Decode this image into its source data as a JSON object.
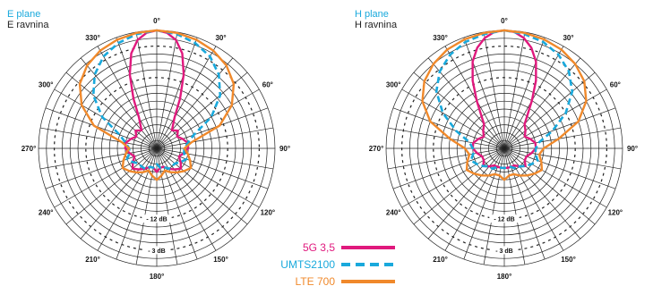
{
  "chart_data": [
    {
      "type": "polar",
      "title_en": "E plane",
      "title_local": "E ravnina",
      "angle_labels": [
        "0°",
        "30°",
        "60°",
        "90°",
        "120°",
        "150°",
        "180°",
        "210°",
        "240°",
        "270°",
        "300°",
        "330°"
      ],
      "db_labels": [
        "- 12 dB",
        "- 3 dB"
      ],
      "rlim_db": [
        -30,
        0
      ],
      "grid": true,
      "series": [
        {
          "name": "5G 3,5",
          "color": "#e0197d",
          "style": "solid",
          "theta_deg": [
            0,
            5,
            10,
            15,
            20,
            25,
            30,
            40,
            50,
            60,
            70,
            80,
            90,
            100,
            110,
            120,
            130,
            140,
            150,
            160,
            170,
            180,
            190,
            200,
            210,
            220,
            230,
            240,
            250,
            260,
            270,
            280,
            290,
            300,
            310,
            320,
            330,
            335,
            340,
            345,
            350,
            355
          ],
          "r_db": [
            0,
            -0.5,
            -2,
            -5,
            -10,
            -16,
            -21,
            -24,
            -23,
            -24,
            -23,
            -22,
            -22,
            -23,
            -24,
            -23,
            -22,
            -23,
            -24,
            -25,
            -25,
            -24,
            -25,
            -25,
            -24,
            -23,
            -22,
            -23,
            -24,
            -23,
            -22,
            -22,
            -23,
            -24,
            -23,
            -24,
            -21,
            -16,
            -10,
            -5,
            -2,
            -0.5
          ]
        },
        {
          "name": "UMTS2100",
          "color": "#19a9dc",
          "style": "dashed",
          "theta_deg": [
            0,
            10,
            20,
            30,
            40,
            50,
            60,
            70,
            80,
            90,
            100,
            110,
            120,
            130,
            140,
            150,
            160,
            170,
            180,
            190,
            200,
            210,
            220,
            230,
            240,
            250,
            260,
            270,
            280,
            290,
            300,
            310,
            320,
            330,
            340,
            350
          ],
          "r_db": [
            0,
            -0.5,
            -1.5,
            -3,
            -5.5,
            -9,
            -14,
            -20,
            -22,
            -23,
            -23,
            -22,
            -23,
            -24,
            -24,
            -24,
            -25,
            -25,
            -26,
            -25,
            -25,
            -24,
            -24,
            -24,
            -23,
            -22,
            -23,
            -23,
            -22,
            -20,
            -14,
            -9,
            -5.5,
            -3,
            -1.5,
            -0.5
          ]
        },
        {
          "name": "LTE 700",
          "color": "#f0892b",
          "style": "solid",
          "theta_deg": [
            0,
            10,
            20,
            30,
            40,
            50,
            60,
            70,
            80,
            90,
            100,
            110,
            120,
            130,
            140,
            150,
            160,
            170,
            180,
            190,
            200,
            210,
            220,
            230,
            240,
            250,
            260,
            270,
            280,
            290,
            300,
            310,
            320,
            330,
            340,
            350
          ],
          "r_db": [
            0,
            -0.2,
            -0.6,
            -1.3,
            -2.5,
            -4.5,
            -8,
            -13,
            -21,
            -23,
            -22,
            -21,
            -20,
            -21,
            -22,
            -23,
            -24,
            -23,
            -22,
            -23,
            -24,
            -23,
            -22,
            -21,
            -20,
            -21,
            -22,
            -23,
            -21,
            -13,
            -8,
            -4.5,
            -2.5,
            -1.3,
            -0.6,
            -0.2
          ]
        }
      ]
    },
    {
      "type": "polar",
      "title_en": "H plane",
      "title_local": "H ravnina",
      "angle_labels": [
        "0°",
        "30°",
        "60°",
        "90°",
        "120°",
        "150°",
        "180°",
        "210°",
        "240°",
        "270°",
        "300°",
        "330°"
      ],
      "db_labels": [
        "- 12 dB",
        "- 3 dB"
      ],
      "rlim_db": [
        -30,
        0
      ],
      "grid": true,
      "series": [
        {
          "name": "5G 3,5",
          "color": "#e0197d",
          "style": "solid",
          "theta_deg": [
            0,
            5,
            10,
            15,
            20,
            25,
            30,
            40,
            50,
            60,
            70,
            80,
            90,
            100,
            110,
            120,
            130,
            140,
            150,
            160,
            170,
            180,
            190,
            200,
            210,
            220,
            230,
            240,
            250,
            260,
            270,
            280,
            290,
            300,
            310,
            320,
            330,
            335,
            340,
            345,
            350,
            355
          ],
          "r_db": [
            0,
            -0.3,
            -1.5,
            -3.5,
            -6.5,
            -11,
            -16,
            -22,
            -23,
            -24,
            -23,
            -22,
            -22,
            -23,
            -24,
            -24,
            -23,
            -24,
            -25,
            -25,
            -25,
            -25,
            -25,
            -25,
            -25,
            -24,
            -23,
            -24,
            -24,
            -23,
            -22,
            -22,
            -23,
            -24,
            -23,
            -22,
            -16,
            -11,
            -6.5,
            -3.5,
            -1.5,
            -0.3
          ]
        },
        {
          "name": "UMTS2100",
          "color": "#19a9dc",
          "style": "dashed",
          "theta_deg": [
            0,
            10,
            20,
            30,
            40,
            50,
            60,
            70,
            80,
            90,
            100,
            110,
            120,
            130,
            140,
            150,
            160,
            170,
            180,
            190,
            200,
            210,
            220,
            230,
            240,
            250,
            260,
            270,
            280,
            290,
            300,
            310,
            320,
            330,
            340,
            350
          ],
          "r_db": [
            0,
            -0.5,
            -1.2,
            -2.5,
            -4.5,
            -7.5,
            -12,
            -17,
            -21,
            -22,
            -22,
            -21,
            -22,
            -23,
            -24,
            -24,
            -25,
            -25,
            -25,
            -25,
            -25,
            -24,
            -24,
            -23,
            -22,
            -21,
            -22,
            -22,
            -21,
            -17,
            -12,
            -7.5,
            -4.5,
            -2.5,
            -1.2,
            -0.5
          ]
        },
        {
          "name": "LTE 700",
          "color": "#f0892b",
          "style": "solid",
          "theta_deg": [
            0,
            10,
            20,
            30,
            40,
            50,
            60,
            70,
            80,
            90,
            100,
            110,
            120,
            130,
            140,
            150,
            160,
            170,
            180,
            190,
            200,
            210,
            220,
            230,
            240,
            250,
            260,
            270,
            280,
            290,
            300,
            310,
            320,
            330,
            340,
            350
          ],
          "r_db": [
            0,
            -0.2,
            -0.5,
            -1,
            -2,
            -3.5,
            -6,
            -10,
            -16,
            -20,
            -21,
            -20,
            -19,
            -20,
            -21,
            -22,
            -23,
            -23,
            -22,
            -23,
            -23,
            -22,
            -21,
            -20,
            -19,
            -20,
            -21,
            -20,
            -16,
            -10,
            -6,
            -3.5,
            -2,
            -1,
            -0.5,
            -0.2
          ]
        }
      ]
    }
  ],
  "legend": [
    {
      "label": "5G 3,5",
      "color": "#e0197d",
      "style": "solid"
    },
    {
      "label": "UMTS2100",
      "color": "#19a9dc",
      "style": "dashed"
    },
    {
      "label": "LTE 700",
      "color": "#f0892b",
      "style": "solid"
    }
  ]
}
